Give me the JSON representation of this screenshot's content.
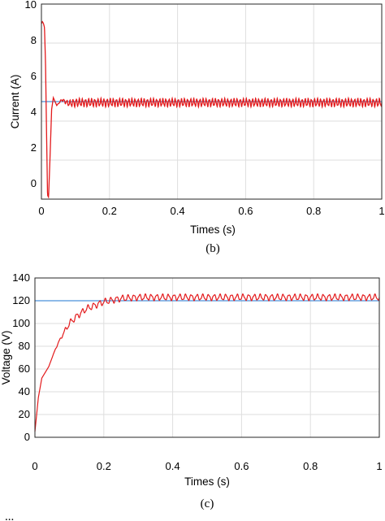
{
  "charts": [
    {
      "panel_label": "(b)",
      "xlabel": "Times (s)",
      "ylabel": "Current (A)",
      "xticks": [
        "0",
        "0.2",
        "0.4",
        "0.6",
        "0.8",
        "1"
      ],
      "yticks": [
        "0",
        "2",
        "4",
        "6",
        "8",
        "10"
      ]
    },
    {
      "panel_label": "(c)",
      "xlabel": "Times (s)",
      "ylabel": "Voltage (V)",
      "xticks": [
        "0",
        "0.2",
        "0.4",
        "0.6",
        "0.8",
        "1"
      ],
      "yticks": [
        "0",
        "20",
        "40",
        "60",
        "80",
        "100",
        "120",
        "140"
      ]
    }
  ],
  "caption_fragment": "...",
  "chart_data": [
    {
      "type": "line",
      "xlabel": "Times (s)",
      "ylabel": "Current (A)",
      "xlim": [
        0,
        1
      ],
      "ylim": [
        0,
        10
      ],
      "grid": true,
      "colors": {
        "reference": "#4a90d9",
        "response": "#e31a1c"
      },
      "series": [
        {
          "x": [
            0,
            1
          ],
          "values": [
            5,
            5
          ]
        },
        {
          "x": [
            0,
            0.003,
            0.006,
            0.009,
            0.012,
            0.015,
            0.018,
            0.021,
            0.025,
            0.03,
            0.035,
            0.045,
            0.06,
            0.08,
            0.1,
            1.0
          ],
          "values": [
            9.0,
            9.1,
            9.0,
            8.8,
            7.0,
            3.5,
            0.2,
            0.1,
            2.0,
            4.6,
            5.2,
            4.8,
            5.1,
            4.9,
            4.95,
            4.95
          ],
          "ripple_amplitude": 0.22,
          "ripple_from": 0.045
        }
      ]
    },
    {
      "type": "line",
      "xlabel": "Times (s)",
      "ylabel": "Voltage (V)",
      "xlim": [
        0,
        1
      ],
      "ylim": [
        0,
        140
      ],
      "grid": true,
      "colors": {
        "reference": "#4a90d9",
        "response": "#e31a1c"
      },
      "series": [
        {
          "x": [
            0,
            1
          ],
          "values": [
            120,
            120
          ]
        },
        {
          "x": [
            0,
            0.01,
            0.02,
            0.04,
            0.06,
            0.08,
            0.1,
            0.12,
            0.15,
            0.2,
            0.25,
            0.3,
            0.4,
            1.0
          ],
          "values": [
            5,
            35,
            52,
            62,
            78,
            90,
            100,
            106,
            113,
            119,
            122,
            123,
            123,
            123
          ],
          "ripple_amplitude": 3,
          "ripple_from": 0.05
        }
      ]
    }
  ]
}
